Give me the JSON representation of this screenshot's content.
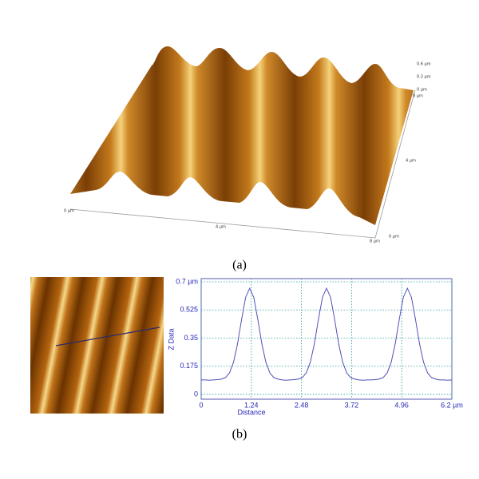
{
  "panel_a": {
    "label": "(a)",
    "x_axis_labels": [
      "0 µm",
      "4 µm",
      "8 µm"
    ],
    "y_axis_labels": [
      "0 µm",
      "4 µm",
      "8 µm"
    ],
    "z_axis_labels": [
      "0.6 µm",
      "0.3 µm",
      "0 µm"
    ]
  },
  "panel_b": {
    "label": "(b)"
  },
  "chart_data": {
    "type": "line",
    "xlabel": "Distance",
    "ylabel": "Z Data",
    "x": [
      0,
      0.1,
      0.2,
      0.3,
      0.4,
      0.5,
      0.6,
      0.7,
      0.8,
      0.9,
      1.0,
      1.1,
      1.2,
      1.3,
      1.4,
      1.5,
      1.6,
      1.7,
      1.8,
      1.9,
      2.0,
      2.1,
      2.2,
      2.3,
      2.4,
      2.5,
      2.6,
      2.7,
      2.8,
      2.9,
      3.0,
      3.1,
      3.2,
      3.3,
      3.4,
      3.5,
      3.6,
      3.7,
      3.8,
      3.9,
      4.0,
      4.1,
      4.2,
      4.3,
      4.4,
      4.5,
      4.6,
      4.7,
      4.8,
      4.9,
      5.0,
      5.1,
      5.2,
      5.3,
      5.4,
      5.5,
      5.6,
      5.7,
      5.8,
      5.9,
      6.0,
      6.1,
      6.2
    ],
    "series": [
      {
        "color": "#5050b8",
        "values": [
          0.09,
          0.09,
          0.088,
          0.09,
          0.092,
          0.095,
          0.104,
          0.133,
          0.2,
          0.315,
          0.467,
          0.604,
          0.66,
          0.604,
          0.467,
          0.315,
          0.2,
          0.133,
          0.104,
          0.095,
          0.09,
          0.088,
          0.09,
          0.092,
          0.095,
          0.104,
          0.133,
          0.2,
          0.315,
          0.467,
          0.604,
          0.66,
          0.604,
          0.467,
          0.315,
          0.2,
          0.133,
          0.104,
          0.095,
          0.09,
          0.088,
          0.09,
          0.09,
          0.092,
          0.095,
          0.104,
          0.133,
          0.2,
          0.315,
          0.467,
          0.604,
          0.66,
          0.604,
          0.467,
          0.315,
          0.2,
          0.133,
          0.104,
          0.095,
          0.09,
          0.09,
          0.088,
          0.09
        ]
      }
    ],
    "xlim": [
      0,
      6.2
    ],
    "ylim": [
      -0.03,
      0.72
    ],
    "xticks": [
      0,
      1.24,
      2.48,
      3.72,
      4.96,
      {
        "value": 6.2,
        "label": "6.2 µm"
      }
    ],
    "yticks": [
      0,
      0.175,
      0.35,
      0.525,
      {
        "value": 0.7,
        "label": "0.7 µm"
      }
    ],
    "grid": true
  }
}
